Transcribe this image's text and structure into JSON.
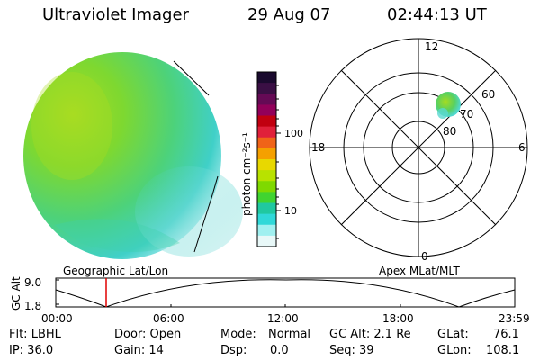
{
  "header": {
    "instrument": "Ultraviolet Imager",
    "date": "29 Aug 07",
    "time": "02:44:13 UT"
  },
  "colorbar": {
    "unit_label": "photon cm⁻²s⁻¹",
    "ticks": [
      "100",
      "10"
    ],
    "colors": [
      "#1a0a2e",
      "#3a0f44",
      "#650a55",
      "#92005a",
      "#c10010",
      "#e0203a",
      "#f06418",
      "#f5a000",
      "#e8d800",
      "#b8e200",
      "#7fd900",
      "#40d430",
      "#20c8a0",
      "#30d8d8",
      "#a0f0f0",
      "#e8f8f8"
    ]
  },
  "polar_plot": {
    "mlt_labels": {
      "top": "12",
      "left": "18",
      "right": "6",
      "bottom": "0"
    },
    "lat_labels": [
      "60",
      "70",
      "80"
    ]
  },
  "image_labels": {
    "left": "Geographic Lat/Lon",
    "right": "Apex MLat/MLT"
  },
  "altitude_plot": {
    "axis_title": "GC Alt",
    "ymax": "9.0",
    "ymin": "1.8",
    "x_ticks": [
      "00:00",
      "06:00",
      "12:00",
      "18:00",
      "23:59"
    ],
    "marker_color": "#e00000"
  },
  "info": {
    "flt": "Flt: LBHL",
    "ip": "IP: 36.0",
    "door": "Door: Open",
    "gain": "Gain: 14",
    "mode_label": "Mode:",
    "mode_value": "Normal",
    "dsp_label": "Dsp:",
    "dsp_value": "0.0",
    "gcalt": "GC Alt: 2.1 Re",
    "seq": "Seq: 39",
    "glat_label": "GLat:",
    "glat_value": "76.1",
    "glon_label": "GLon:",
    "glon_value": "108.1"
  }
}
